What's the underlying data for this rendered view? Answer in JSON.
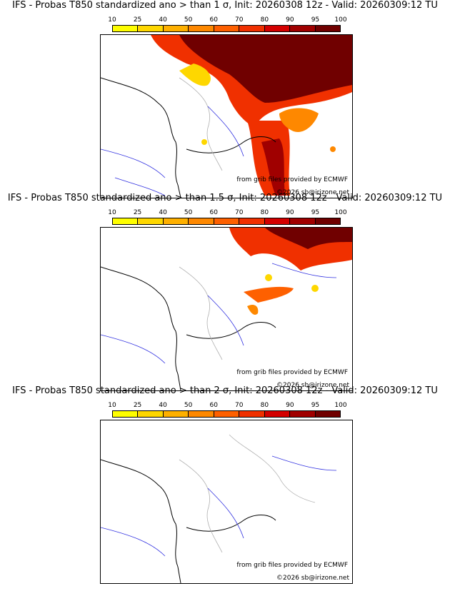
{
  "colors": {
    "scale": [
      "#fefe00",
      "#fed700",
      "#feb000",
      "#fe8800",
      "#fe6000",
      "#f03000",
      "#d40000",
      "#a00000",
      "#700000"
    ],
    "coast": "#000000",
    "rivers": "#3030e0",
    "borders": "#b0b0b0"
  },
  "colorbar": {
    "labels": [
      "10",
      "25",
      "40",
      "50",
      "60",
      "70",
      "80",
      "90",
      "95",
      "100"
    ]
  },
  "credits": {
    "source": "from grib files provided by ECMWF",
    "copyright": "©2026 sb@irizone.net"
  },
  "panels": [
    {
      "id": "1sigma",
      "title": "IFS - Probas T850  standardized ano > than 1 σ, Init: 20260308 12z - Valid: 20260309:12 TU"
    },
    {
      "id": "1p5sigma",
      "title": "IFS - Probas T850  standardized ano > than 1.5 σ, Init: 20260308 12z - Valid: 20260309:12 TU"
    },
    {
      "id": "2sigma",
      "title": "IFS - Probas T850  standardized ano > than 2 σ, Init: 20260308 12z - Valid: 20260309:12 TU"
    }
  ]
}
